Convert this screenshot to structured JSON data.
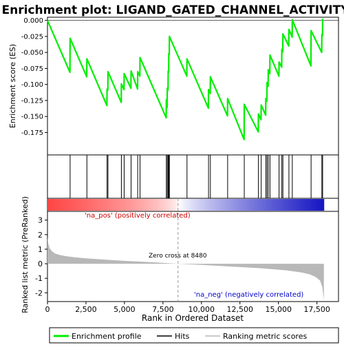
{
  "colors": {
    "enrichment_line": "#00ee00",
    "hits": "#000000",
    "metric_fill": "#b8b8b8",
    "pos_label": "#cc0000",
    "neg_label": "#0000cc",
    "zero_line": "#999999"
  },
  "legend": {
    "items": [
      {
        "label": "Enrichment profile",
        "kind": "green-line"
      },
      {
        "label": "Hits",
        "kind": "black-line"
      },
      {
        "label": "Ranking metric scores",
        "kind": "gray-line"
      }
    ]
  },
  "chart_data": {
    "type": "line",
    "title": "Enrichment plot: LIGAND_GATED_CHANNEL_ACTIVITY",
    "top_panel": {
      "ylabel": "Enrichment score (ES)",
      "ylim": [
        -0.21,
        0.005
      ],
      "yticks": [
        0.0,
        -0.025,
        -0.05,
        -0.075,
        -0.1,
        -0.125,
        -0.15,
        -0.175
      ],
      "ytick_labels": [
        "0.000",
        "-0.025",
        "-0.050",
        "-0.075",
        "-0.100",
        "-0.125",
        "-0.150",
        "-0.175"
      ],
      "grid": false
    },
    "bottom_panel": {
      "ylabel": "Ranked list metric (PreRanked)",
      "ylim": [
        -2.6,
        3.6
      ],
      "yticks": [
        3,
        2,
        1,
        0,
        -1,
        -2
      ],
      "ytick_labels": [
        "3",
        "2",
        "1",
        "0",
        "-1",
        "-2"
      ],
      "zero_cross_label": "Zero cross at 8480",
      "zero_cross": 8480,
      "pos_label": "'na_pos' (positively correlated)",
      "neg_label": "'na_neg' (negatively correlated)",
      "metric_curve": {
        "x": [
          0,
          50,
          150,
          300,
          500,
          800,
          1200,
          1700,
          2500,
          3500,
          5000,
          6500,
          8480,
          10000,
          12000,
          14000,
          15500,
          16500,
          17000,
          17400,
          17700,
          17850,
          17950
        ],
        "y": [
          1.8,
          1.4,
          1.05,
          0.85,
          0.7,
          0.6,
          0.52,
          0.45,
          0.37,
          0.3,
          0.2,
          0.12,
          0.0,
          -0.08,
          -0.2,
          -0.32,
          -0.45,
          -0.6,
          -0.72,
          -0.9,
          -1.15,
          -1.6,
          -2.5
        ]
      }
    },
    "xlabel": "Rank in Ordered Dataset",
    "xlim": [
      0,
      18900
    ],
    "xticks": [
      0,
      2500,
      5000,
      7500,
      10000,
      12500,
      15000,
      17500
    ],
    "xtick_labels": [
      "0",
      "2,500",
      "5,000",
      "7,500",
      "10,000",
      "12,500",
      "15,000",
      "17,500"
    ],
    "hits": [
      0,
      1470,
      2560,
      3870,
      3930,
      4800,
      4980,
      5430,
      5860,
      6010,
      7720,
      7780,
      7840,
      7880,
      7920,
      9060,
      10460,
      10580,
      11700,
      12780,
      13700,
      13880,
      14180,
      14260,
      14340,
      14450,
      15040,
      15220,
      15290,
      15680,
      15900,
      17120,
      17820,
      17870
    ],
    "es_profile": {
      "x": [
        0,
        1460,
        1470,
        2550,
        2560,
        3860,
        3870,
        3920,
        3930,
        4790,
        4800,
        4970,
        4980,
        5420,
        5430,
        5850,
        5860,
        6000,
        6010,
        7710,
        7720,
        7770,
        7780,
        7830,
        7840,
        7870,
        7880,
        7910,
        7920,
        9050,
        9060,
        10450,
        10460,
        10570,
        10580,
        11690,
        11700,
        12770,
        12780,
        13690,
        13700,
        13870,
        13880,
        14170,
        14180,
        14250,
        14260,
        14330,
        14340,
        14440,
        14450,
        15030,
        15040,
        15210,
        15220,
        15280,
        15290,
        15670,
        15680,
        15890,
        15900,
        17110,
        17120,
        17810,
        17820,
        17860,
        17870,
        17900
      ],
      "y": [
        0.0,
        -0.081,
        -0.028,
        -0.088,
        -0.06,
        -0.133,
        -0.107,
        -0.109,
        -0.08,
        -0.128,
        -0.099,
        -0.108,
        -0.083,
        -0.106,
        -0.079,
        -0.107,
        -0.08,
        -0.087,
        -0.058,
        -0.152,
        -0.124,
        -0.136,
        -0.106,
        -0.109,
        -0.079,
        -0.081,
        -0.052,
        -0.053,
        -0.025,
        -0.087,
        -0.06,
        -0.137,
        -0.108,
        -0.114,
        -0.088,
        -0.149,
        -0.122,
        -0.186,
        -0.131,
        -0.174,
        -0.146,
        -0.155,
        -0.132,
        -0.148,
        -0.122,
        -0.126,
        -0.097,
        -0.103,
        -0.077,
        -0.083,
        -0.054,
        -0.087,
        -0.065,
        -0.073,
        -0.045,
        -0.049,
        -0.021,
        -0.04,
        -0.014,
        -0.026,
        0.001,
        -0.071,
        -0.016,
        -0.05,
        -0.022,
        -0.024,
        0.002,
        0.002
      ]
    }
  }
}
